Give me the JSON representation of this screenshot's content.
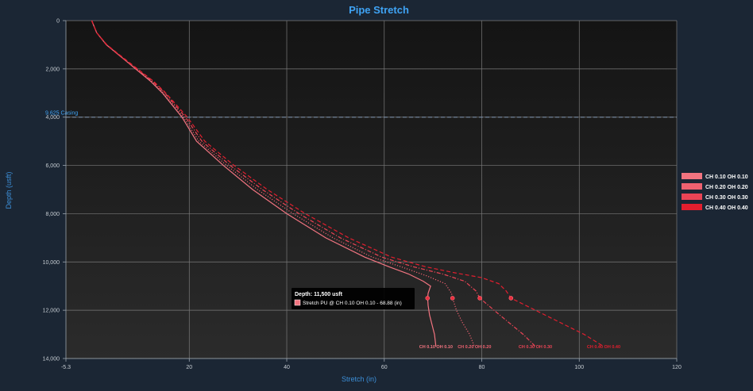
{
  "chart_data": {
    "type": "line",
    "title": "Pipe Stretch",
    "xlabel": "Stretch (in)",
    "ylabel": "Depth (usft)",
    "xlim": [
      -5.3,
      120
    ],
    "ylim": [
      0,
      14000
    ],
    "y_reversed": true,
    "grid": true,
    "legend_position": "right",
    "x_ticks": [
      -5.3,
      20,
      40,
      60,
      80,
      100,
      120
    ],
    "x_tick_labels": [
      "-5.3",
      "20",
      "40",
      "60",
      "80",
      "100",
      "120"
    ],
    "y_ticks": [
      0,
      2000,
      4000,
      6000,
      8000,
      10000,
      12000,
      14000
    ],
    "y_tick_labels": [
      "0",
      "2,000",
      "4,000",
      "6,000",
      "8,000",
      "10,000",
      "12,000",
      "14,000"
    ],
    "reference_line": {
      "label": "9.625 Casing",
      "y": 4000
    },
    "series": [
      {
        "name": "CH 0.10 OH 0.10",
        "color": "#f27480",
        "dash": "solid",
        "end_label": "CH 0.10 OH 0.10",
        "points": [
          [
            0,
            0
          ],
          [
            1,
            500
          ],
          [
            3,
            1000
          ],
          [
            6,
            1500
          ],
          [
            9,
            2000
          ],
          [
            12,
            2500
          ],
          [
            14.5,
            3000
          ],
          [
            16.5,
            3500
          ],
          [
            18.5,
            4000
          ],
          [
            21.5,
            5000
          ],
          [
            27,
            6000
          ],
          [
            33,
            7000
          ],
          [
            40,
            8000
          ],
          [
            48,
            9000
          ],
          [
            56,
            9800
          ],
          [
            61,
            10200
          ],
          [
            65,
            10500
          ],
          [
            68,
            10800
          ],
          [
            69.5,
            11000
          ],
          [
            69,
            11300
          ],
          [
            68.9,
            11500
          ],
          [
            69,
            11800
          ],
          [
            69.3,
            12200
          ],
          [
            69.8,
            12600
          ],
          [
            70.3,
            13000
          ],
          [
            70.6,
            13500
          ]
        ]
      },
      {
        "name": "CH 0.20 OH 0.20",
        "color": "#ef6170",
        "dash": "dotted",
        "end_label": "CH 0.20 OH 0.20",
        "points": [
          [
            0,
            0
          ],
          [
            1,
            500
          ],
          [
            3,
            1000
          ],
          [
            6,
            1500
          ],
          [
            9,
            2000
          ],
          [
            12.2,
            2500
          ],
          [
            14.7,
            3000
          ],
          [
            16.8,
            3500
          ],
          [
            18.8,
            4000
          ],
          [
            22,
            5000
          ],
          [
            27.7,
            6000
          ],
          [
            34,
            7000
          ],
          [
            41.3,
            8000
          ],
          [
            49.5,
            9000
          ],
          [
            57.5,
            9800
          ],
          [
            63.5,
            10200
          ],
          [
            69,
            10600
          ],
          [
            72.5,
            10900
          ],
          [
            73.8,
            11300
          ],
          [
            74,
            11500
          ],
          [
            74.8,
            12000
          ],
          [
            76,
            12500
          ],
          [
            77.5,
            13000
          ],
          [
            78.5,
            13500
          ]
        ]
      },
      {
        "name": "CH 0.30 OH 0.30",
        "color": "#ea4455",
        "dash": "dashdot",
        "end_label": "CH 0.30 OH 0.30",
        "points": [
          [
            0,
            0
          ],
          [
            1,
            500
          ],
          [
            3,
            1000
          ],
          [
            6,
            1500
          ],
          [
            9.2,
            2000
          ],
          [
            12.4,
            2500
          ],
          [
            15,
            3000
          ],
          [
            17.1,
            3500
          ],
          [
            19.2,
            4000
          ],
          [
            22.6,
            5000
          ],
          [
            28.4,
            6000
          ],
          [
            35,
            7000
          ],
          [
            42.5,
            8000
          ],
          [
            51,
            9000
          ],
          [
            59.5,
            9800
          ],
          [
            66,
            10200
          ],
          [
            72,
            10500
          ],
          [
            76.5,
            10800
          ],
          [
            78.8,
            11200
          ],
          [
            79.6,
            11500
          ],
          [
            82.5,
            12000
          ],
          [
            85.5,
            12500
          ],
          [
            88.5,
            13000
          ],
          [
            91,
            13500
          ]
        ]
      },
      {
        "name": "CH 0.40 OH 0.40",
        "color": "#e31e2e",
        "dash": "dashed",
        "end_label": "CH 0.40 OH 0.40",
        "points": [
          [
            0,
            0
          ],
          [
            1,
            500
          ],
          [
            3.1,
            1000
          ],
          [
            6.2,
            1500
          ],
          [
            9.4,
            2000
          ],
          [
            12.6,
            2500
          ],
          [
            15.2,
            3000
          ],
          [
            17.4,
            3500
          ],
          [
            19.6,
            4000
          ],
          [
            23.2,
            5000
          ],
          [
            29.2,
            6000
          ],
          [
            36,
            7000
          ],
          [
            43.8,
            8000
          ],
          [
            52.7,
            9000
          ],
          [
            61.5,
            9800
          ],
          [
            68.5,
            10200
          ],
          [
            74.5,
            10450
          ],
          [
            80,
            10650
          ],
          [
            83.5,
            10900
          ],
          [
            85,
            11200
          ],
          [
            86,
            11500
          ],
          [
            91,
            12000
          ],
          [
            96,
            12500
          ],
          [
            101,
            13000
          ],
          [
            105,
            13500
          ]
        ]
      }
    ],
    "tooltip": {
      "title": "Depth: 11,500 usft",
      "line": "Stretch PU @ CH 0.10 OH 0.10 - 68.88 (in)",
      "color": "#f27480",
      "anchor_x": 68.88,
      "anchor_y": 11500
    },
    "hover_markers": [
      [
        68.88,
        11500
      ],
      [
        74.0,
        11500
      ],
      [
        79.6,
        11500
      ],
      [
        86.0,
        11500
      ]
    ]
  }
}
